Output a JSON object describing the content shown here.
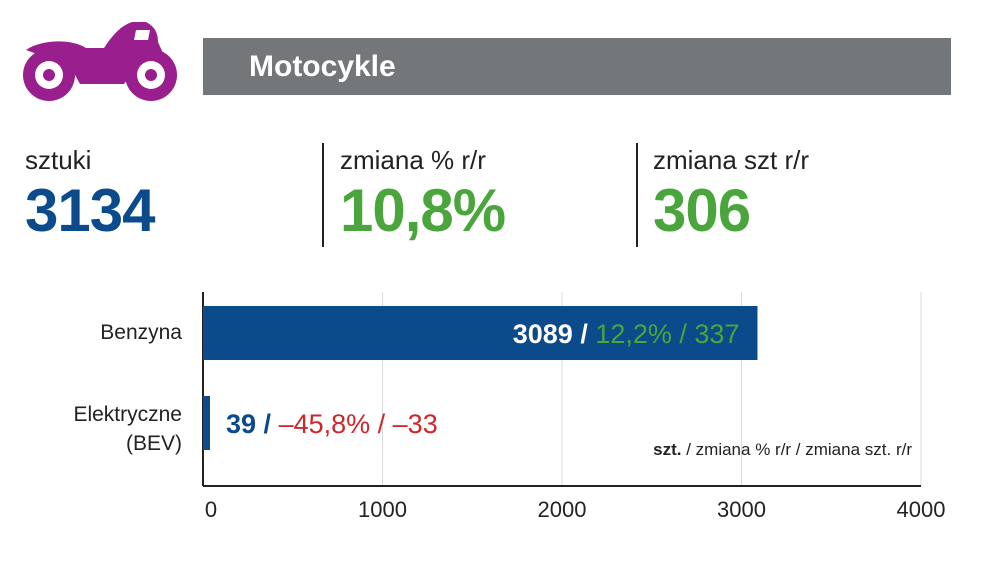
{
  "colors": {
    "header_bg": "#747779",
    "icon": "#9a1f8e",
    "blue": "#0b4a8b",
    "green": "#4aa63c",
    "red": "#d0262b",
    "grid": "#d9d9d9"
  },
  "header": {
    "icon_name": "motorcycle-icon",
    "title": "Motocykle"
  },
  "stats": [
    {
      "label": "sztuki",
      "value": "3134",
      "color": "#0b4a8b"
    },
    {
      "label": "zmiana % r/r",
      "value": "10,8%",
      "color": "#4aa63c"
    },
    {
      "label": "zmiana szt r/r",
      "value": "306",
      "color": "#4aa63c"
    }
  ],
  "chart_data": {
    "type": "bar",
    "orientation": "horizontal",
    "categories": [
      "Benzyna",
      "Elektryczne (BEV)"
    ],
    "category_lines": [
      [
        "Benzyna"
      ],
      [
        "Elektryczne",
        "(BEV)"
      ]
    ],
    "values": [
      3089,
      39
    ],
    "pct_change": [
      "12,2%",
      "–45,8%"
    ],
    "unit_change": [
      "337",
      "–33"
    ],
    "change_colors": [
      "#4aa63c",
      "#d0262b"
    ],
    "bar_color": "#0b4a8b",
    "xlim": [
      0,
      4000
    ],
    "xticks": [
      0,
      1000,
      2000,
      3000,
      4000
    ],
    "xtick_labels": [
      "0",
      "1000",
      "2000",
      "3000",
      "4000"
    ],
    "grid": true,
    "legend_note_bold": "szt.",
    "legend_note_rest": " / zmiana % r/r / zmiana szt. r/r",
    "separator": " / "
  }
}
